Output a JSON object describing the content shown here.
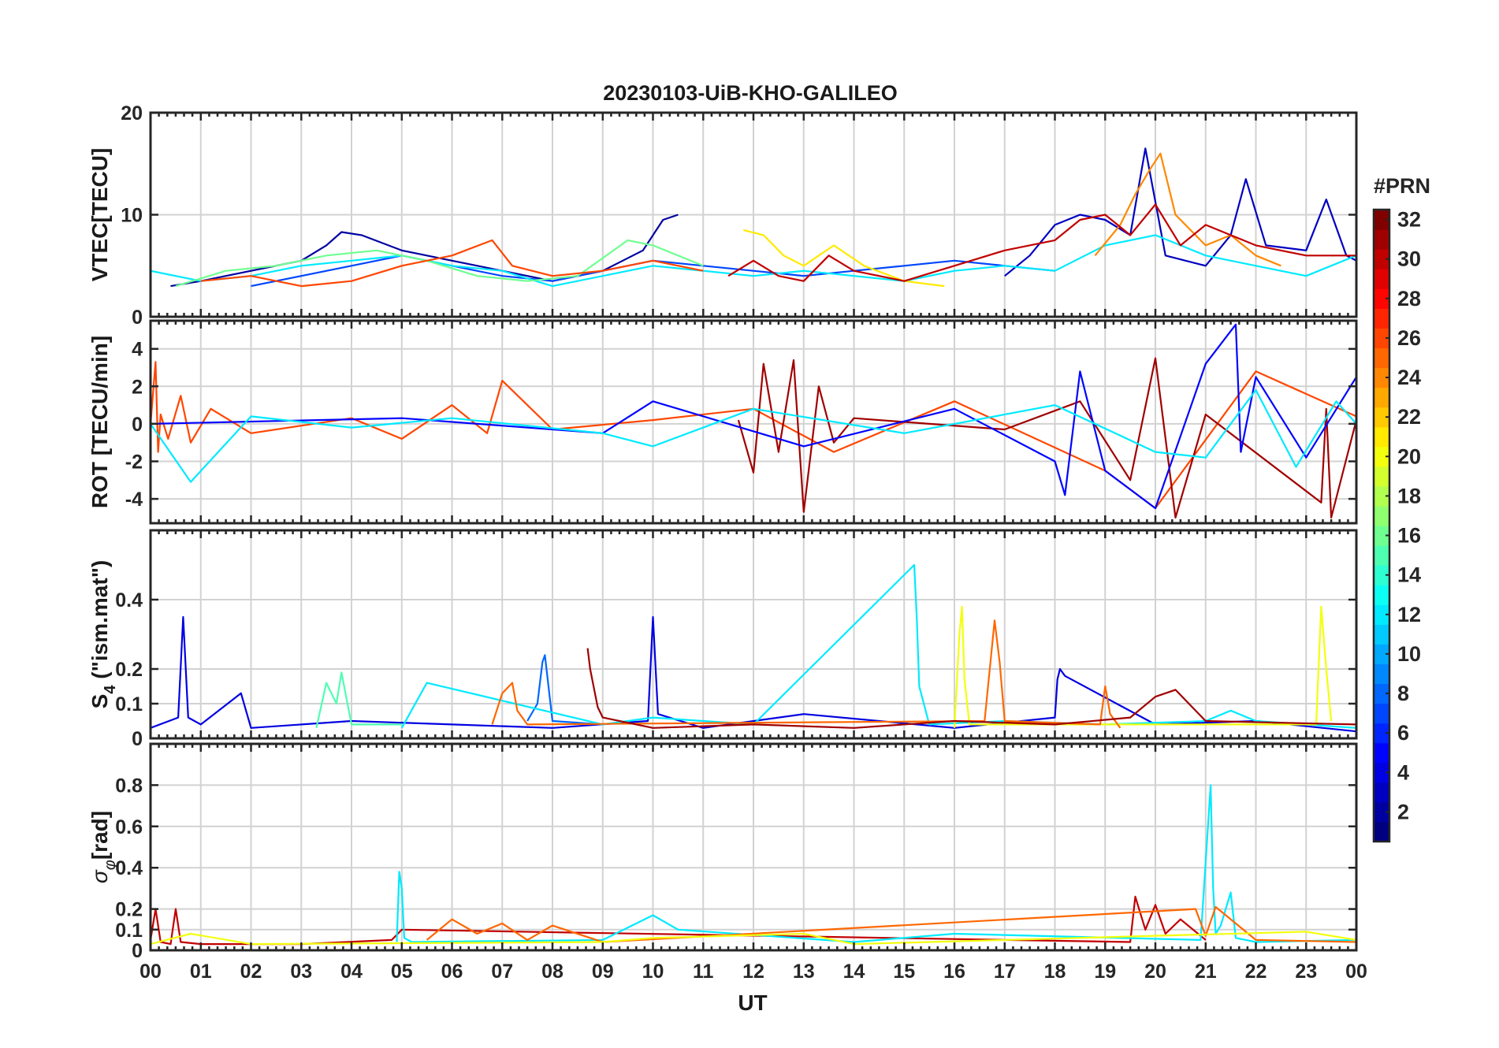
{
  "chart_data": {
    "type": "line",
    "title": "20230103-UiB-KHO-GALILEO",
    "xlabel": "UT",
    "x_tick_labels": [
      "00",
      "01",
      "02",
      "03",
      "04",
      "05",
      "06",
      "07",
      "08",
      "09",
      "10",
      "11",
      "12",
      "13",
      "14",
      "15",
      "16",
      "17",
      "18",
      "19",
      "20",
      "21",
      "22",
      "23",
      "00"
    ],
    "xlim": [
      0,
      24
    ],
    "colorbar": {
      "title": "#PRN",
      "range": [
        1,
        32
      ],
      "tick_labels": [
        "2",
        "4",
        "6",
        "8",
        "10",
        "12",
        "14",
        "16",
        "18",
        "20",
        "22",
        "24",
        "26",
        "28",
        "30",
        "32"
      ],
      "colormap": "jet"
    },
    "panels": [
      {
        "ylabel": "VTEC[TECU]",
        "ylim": [
          0,
          20
        ],
        "yticks": [
          "0",
          "10",
          "20"
        ],
        "ytick_values": [
          0,
          10,
          20
        ],
        "series": [
          {
            "prn": 2,
            "x": [
              0.4,
              1,
              2,
              3,
              3.5,
              3.8,
              4.2,
              5,
              6,
              7,
              8,
              9,
              9.8,
              10.2,
              10.5
            ],
            "y": [
              3,
              3.5,
              4.5,
              5.5,
              7,
              8.3,
              8,
              6.5,
              5.5,
              4.5,
              3.5,
              4.5,
              6.5,
              9.5,
              10
            ]
          },
          {
            "prn": 3,
            "x": [
              17,
              17.5,
              18,
              18.5,
              19,
              19.5,
              19.8,
              20.2,
              21,
              21.5,
              21.8,
              22.2,
              23,
              23.4,
              23.8,
              24
            ],
            "y": [
              4,
              6,
              9,
              10,
              9.5,
              8,
              16.5,
              6,
              5,
              8,
              13.5,
              7,
              6.5,
              11.5,
              6,
              5.5
            ]
          },
          {
            "prn": 7,
            "x": [
              2,
              3,
              4,
              5,
              6,
              7,
              8,
              9,
              10,
              11,
              12,
              13,
              14,
              15,
              16,
              17,
              18
            ],
            "y": [
              3,
              4,
              5,
              6,
              5,
              4,
              3.5,
              4.5,
              5.5,
              5,
              4.5,
              4,
              4.5,
              5,
              5.5,
              5,
              4.5
            ]
          },
          {
            "prn": 12,
            "x": [
              0,
              1,
              2,
              3,
              4,
              5,
              6,
              7,
              8,
              9,
              10,
              11,
              12,
              13,
              14,
              15,
              16,
              17,
              18,
              19,
              20,
              21,
              22,
              23,
              24
            ],
            "y": [
              4.5,
              3.5,
              4,
              5,
              5.5,
              6,
              5,
              4.5,
              3,
              4,
              5,
              4.5,
              4,
              4.5,
              4,
              3.5,
              4.5,
              5,
              4.5,
              7,
              8,
              6,
              5,
              4,
              6
            ]
          },
          {
            "prn": 16,
            "x": [
              0.5,
              1.5,
              2.5,
              3.5,
              4.5,
              5.5,
              6.5,
              7.5,
              8.5,
              9.5,
              10,
              11
            ],
            "y": [
              3,
              4.5,
              5,
              6,
              6.5,
              5.5,
              4,
              3.5,
              4,
              7.5,
              7,
              5
            ]
          },
          {
            "prn": 21,
            "x": [
              11.8,
              12.2,
              12.6,
              13,
              13.6,
              14.2,
              15,
              15.8
            ],
            "y": [
              8.5,
              8,
              6,
              5,
              7,
              5,
              3.5,
              3
            ]
          },
          {
            "prn": 24,
            "x": [
              18.8,
              19.3,
              19.6,
              19.9,
              20.1,
              20.4,
              21,
              21.5,
              22,
              22.5
            ],
            "y": [
              6,
              9,
              12,
              14.5,
              16,
              10,
              7,
              8,
              6,
              5
            ]
          },
          {
            "prn": 26,
            "x": [
              1,
              2,
              3,
              4,
              5,
              6,
              6.8,
              7.2,
              8,
              9,
              10,
              11
            ],
            "y": [
              3.5,
              4,
              3,
              3.5,
              5,
              6,
              7.5,
              5,
              4,
              4.5,
              5.5,
              4.5
            ]
          },
          {
            "prn": 30,
            "x": [
              11.5,
              12,
              12.5,
              13,
              13.5,
              14,
              15,
              16,
              17,
              18,
              18.5,
              19,
              19.5,
              20,
              20.5,
              21,
              22,
              23,
              24
            ],
            "y": [
              4,
              5.5,
              4,
              3.5,
              6,
              4.5,
              3.5,
              5,
              6.5,
              7.5,
              9.5,
              10,
              8,
              11,
              7,
              9,
              7,
              6,
              6
            ]
          }
        ]
      },
      {
        "ylabel": "ROT [TECU/min]",
        "ylim": [
          -5.3,
          5.5
        ],
        "yticks": [
          "-4",
          "-2",
          "0",
          "2",
          "4"
        ],
        "ytick_values": [
          -4,
          -2,
          0,
          2,
          4
        ],
        "series": [
          {
            "prn": 26,
            "x": [
              0,
              0.1,
              0.15,
              0.2,
              0.35,
              0.6,
              0.8,
              1.2,
              2,
              4,
              5,
              6,
              6.7,
              7,
              8,
              10,
              12,
              13.6,
              16,
              19,
              20,
              22,
              24
            ],
            "y": [
              0,
              3.3,
              -1.5,
              0.5,
              -0.8,
              1.5,
              -1,
              0.8,
              -0.5,
              0.3,
              -0.8,
              1,
              -0.5,
              2.3,
              -0.3,
              0.2,
              0.8,
              -1.5,
              1.2,
              -2.5,
              -4.5,
              2.8,
              0.4
            ]
          },
          {
            "prn": 31,
            "x": [
              11.7,
              12,
              12.2,
              12.5,
              12.8,
              13,
              13.3,
              13.6,
              14,
              17,
              18.5,
              19.5,
              20,
              20.4,
              21,
              23.3,
              23.4,
              23.5,
              24
            ],
            "y": [
              0.2,
              -2.6,
              3.2,
              -1.5,
              3.4,
              -4.7,
              2,
              -1,
              0.3,
              -0.3,
              1.2,
              -3,
              3.5,
              -5,
              0.5,
              -4.2,
              0.8,
              -5,
              0.2
            ]
          },
          {
            "prn": 5,
            "x": [
              0,
              5,
              9,
              10,
              13,
              16,
              18,
              18.2,
              18.5,
              19,
              20,
              21,
              21.6,
              21.7,
              22,
              23,
              24
            ],
            "y": [
              0,
              0.3,
              -0.5,
              1.2,
              -1.2,
              0.8,
              -2,
              -3.8,
              2.8,
              -2.5,
              -4.5,
              3.2,
              5.3,
              -1.5,
              2.5,
              -1.8,
              2.5
            ]
          },
          {
            "prn": 12,
            "x": [
              0,
              0.8,
              2,
              4,
              6,
              9,
              10,
              12,
              15,
              18,
              20,
              21,
              22,
              22.8,
              23.6,
              24
            ],
            "y": [
              0,
              -3.1,
              0.4,
              -0.2,
              0.3,
              -0.5,
              -1.2,
              0.8,
              -0.5,
              1,
              -1.5,
              -1.8,
              1.8,
              -2.3,
              1.2,
              0
            ]
          }
        ]
      },
      {
        "ylabel": "S4 (\"ism.mat\")",
        "ylim": [
          0,
          0.6
        ],
        "yticks": [
          "0",
          "0.1",
          "0.2",
          "0.4"
        ],
        "ytick_values": [
          0,
          0.1,
          0.2,
          0.4
        ],
        "series": [
          {
            "prn": 4,
            "x": [
              0,
              0.55,
              0.65,
              0.75,
              1,
              1.8,
              2,
              4,
              6,
              8,
              9.9,
              10,
              10.1,
              11,
              13,
              16,
              18,
              18.05,
              18.1,
              18.2,
              20,
              22,
              24
            ],
            "y": [
              0.03,
              0.06,
              0.35,
              0.06,
              0.04,
              0.13,
              0.03,
              0.05,
              0.04,
              0.03,
              0.05,
              0.35,
              0.07,
              0.03,
              0.07,
              0.03,
              0.06,
              0.17,
              0.2,
              0.18,
              0.04,
              0.05,
              0.02
            ]
          },
          {
            "prn": 8,
            "x": [
              7.5,
              7.7,
              7.8,
              7.85,
              8,
              9
            ],
            "y": [
              0.05,
              0.1,
              0.22,
              0.24,
              0.05,
              0.04
            ]
          },
          {
            "prn": 12,
            "x": [
              5,
              5.5,
              9,
              10,
              12,
              15.2,
              15.25,
              15.3,
              15.5,
              17,
              19,
              21,
              21.5,
              22,
              24
            ],
            "y": [
              0.03,
              0.16,
              0.04,
              0.06,
              0.04,
              0.5,
              0.35,
              0.15,
              0.04,
              0.05,
              0.04,
              0.05,
              0.08,
              0.05,
              0.03
            ]
          },
          {
            "prn": 15,
            "x": [
              3.3,
              3.5,
              3.7,
              3.8,
              4,
              5
            ],
            "y": [
              0.03,
              0.16,
              0.1,
              0.19,
              0.04,
              0.04
            ]
          },
          {
            "prn": 20,
            "x": [
              16,
              16.1,
              16.15,
              16.2,
              16.3,
              23.2,
              23.3,
              23.4,
              23.5
            ],
            "y": [
              0.03,
              0.3,
              0.38,
              0.17,
              0.04,
              0.04,
              0.38,
              0.2,
              0.05
            ]
          },
          {
            "prn": 25,
            "x": [
              6.8,
              7,
              7.2,
              7.3,
              7.5,
              16.6,
              16.8,
              16.9,
              17,
              18.9,
              19,
              19.1,
              19.3
            ],
            "y": [
              0.04,
              0.13,
              0.16,
              0.08,
              0.04,
              0.05,
              0.34,
              0.22,
              0.05,
              0.04,
              0.15,
              0.07,
              0.03
            ]
          },
          {
            "prn": 31,
            "x": [
              8.7,
              8.75,
              8.9,
              9,
              10,
              12,
              14,
              16,
              18,
              19.5,
              20,
              20.4,
              21,
              24
            ],
            "y": [
              0.26,
              0.2,
              0.09,
              0.06,
              0.03,
              0.04,
              0.03,
              0.05,
              0.04,
              0.06,
              0.12,
              0.14,
              0.05,
              0.04
            ]
          }
        ]
      },
      {
        "ylabel": "σφ[rad]",
        "ylim": [
          0,
          1
        ],
        "yticks": [
          "0",
          "0.1",
          "0.2",
          "0.4",
          "0.6",
          "0.8"
        ],
        "ytick_values": [
          0,
          0.1,
          0.2,
          0.4,
          0.6,
          0.8
        ],
        "series": [
          {
            "prn": 30,
            "x": [
              0,
              0.1,
              0.2,
              0.4,
              0.5,
              0.6,
              1,
              3,
              4.8,
              5,
              19.5,
              19.6,
              19.8,
              20,
              20.2,
              20.5,
              21
            ],
            "y": [
              0.05,
              0.2,
              0.04,
              0.03,
              0.2,
              0.04,
              0.03,
              0.03,
              0.05,
              0.1,
              0.04,
              0.26,
              0.1,
              0.22,
              0.08,
              0.15,
              0.05
            ]
          },
          {
            "prn": 12,
            "x": [
              4.9,
              4.95,
              5,
              5.05,
              5.2,
              9,
              10,
              10.5,
              14,
              16,
              20.9,
              21.1,
              21.15,
              21.2,
              21.3,
              21.5,
              21.6,
              22,
              24
            ],
            "y": [
              0.04,
              0.38,
              0.3,
              0.06,
              0.04,
              0.05,
              0.17,
              0.1,
              0.04,
              0.08,
              0.05,
              0.8,
              0.3,
              0.08,
              0.12,
              0.28,
              0.06,
              0.04,
              0.05
            ]
          },
          {
            "prn": 25,
            "x": [
              5.5,
              6,
              6.5,
              7,
              7.5,
              8,
              9,
              20.8,
              21,
              21.2,
              22,
              24
            ],
            "y": [
              0.05,
              0.15,
              0.08,
              0.13,
              0.05,
              0.12,
              0.04,
              0.2,
              0.07,
              0.21,
              0.05,
              0.04
            ]
          },
          {
            "prn": 20,
            "x": [
              0,
              0.8,
              2,
              9,
              10,
              13,
              14,
              23,
              24
            ],
            "y": [
              0.03,
              0.08,
              0.03,
              0.04,
              0.06,
              0.08,
              0.03,
              0.09,
              0.05
            ]
          }
        ]
      }
    ]
  }
}
